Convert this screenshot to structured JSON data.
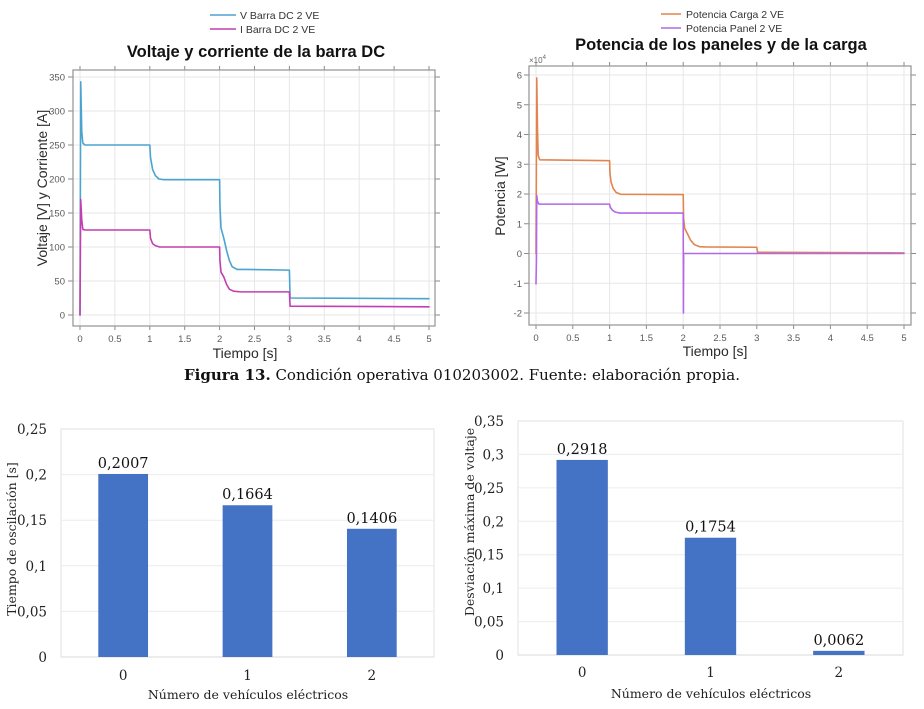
{
  "figure_caption": {
    "label": "Figura 13.",
    "text": " Condición operativa 010203002. Fuente: elaboración propia."
  },
  "chart_data": [
    {
      "id": "voltage_current",
      "type": "line",
      "title": "Voltaje y corriente de la barra DC",
      "xlabel": "Tiempo [s]",
      "ylabel": "Voltaje [V] y Corriente [A]",
      "xlim": [
        0,
        5
      ],
      "ylim": [
        0,
        350
      ],
      "xticks": [
        0,
        0.5,
        1,
        1.5,
        2,
        2.5,
        3,
        3.5,
        4,
        4.5,
        5
      ],
      "xtick_labels": [
        "0",
        "0.5",
        "1",
        "1.5",
        "2",
        "2.5",
        "3",
        "3.5",
        "4",
        "4.5",
        "5"
      ],
      "yticks": [
        0,
        50,
        100,
        150,
        200,
        250,
        300,
        350
      ],
      "ytick_labels": [
        "0",
        "50",
        "100",
        "150",
        "200",
        "250",
        "300",
        "350"
      ],
      "grid": true,
      "legend_position": "top-center",
      "series": [
        {
          "name": "V Barra DC 2 VE",
          "color": "#4ba3cf",
          "points": [
            [
              0,
              0
            ],
            [
              0.01,
              343
            ],
            [
              0.025,
              270
            ],
            [
              0.04,
              253
            ],
            [
              0.07,
              250
            ],
            [
              1.0,
              250
            ],
            [
              1.01,
              232
            ],
            [
              1.04,
              214
            ],
            [
              1.08,
              205
            ],
            [
              1.13,
              200
            ],
            [
              1.2,
              199
            ],
            [
              2.0,
              199
            ],
            [
              2.005,
              160
            ],
            [
              2.02,
              128
            ],
            [
              2.06,
              113
            ],
            [
              2.1,
              95
            ],
            [
              2.14,
              80
            ],
            [
              2.18,
              71
            ],
            [
              2.25,
              67
            ],
            [
              2.35,
              67
            ],
            [
              3.0,
              66
            ],
            [
              3.01,
              25
            ],
            [
              5,
              24
            ]
          ]
        },
        {
          "name": "I Barra DC 2 VE",
          "color": "#c23fb0",
          "points": [
            [
              0,
              0
            ],
            [
              0.01,
              170
            ],
            [
              0.025,
              140
            ],
            [
              0.04,
              126
            ],
            [
              0.07,
              125
            ],
            [
              1.0,
              125
            ],
            [
              1.01,
              113
            ],
            [
              1.04,
              105
            ],
            [
              1.08,
              102
            ],
            [
              1.14,
              100
            ],
            [
              2.0,
              100
            ],
            [
              2.005,
              80
            ],
            [
              2.02,
              63
            ],
            [
              2.06,
              56
            ],
            [
              2.1,
              45
            ],
            [
              2.14,
              38
            ],
            [
              2.2,
              35
            ],
            [
              2.3,
              34
            ],
            [
              3.0,
              34
            ],
            [
              3.01,
              13
            ],
            [
              5,
              12
            ]
          ]
        }
      ]
    },
    {
      "id": "panel_load_power",
      "type": "line",
      "title": "Potencia de los paneles y de la carga",
      "xlabel": "Tiempo [s]",
      "ylabel": "Potencia [W]",
      "y_multiplier": {
        "base": "×10",
        "exponent": "4"
      },
      "xlim": [
        0,
        5
      ],
      "ylim": [
        -2,
        6
      ],
      "xticks": [
        0,
        0.5,
        1,
        1.5,
        2,
        2.5,
        3,
        3.5,
        4,
        4.5,
        5
      ],
      "xtick_labels": [
        "0",
        "0.5",
        "1",
        "1.5",
        "2",
        "2.5",
        "3",
        "3.5",
        "4",
        "4.5",
        "5"
      ],
      "yticks": [
        -2,
        -1,
        0,
        1,
        2,
        3,
        4,
        5,
        6
      ],
      "ytick_labels": [
        "-2",
        "-1",
        "0",
        "1",
        "2",
        "3",
        "4",
        "5",
        "6"
      ],
      "grid": true,
      "legend_position": "top-center",
      "series": [
        {
          "name": "Potencia Carga 2 VE",
          "color": "#e2844f",
          "points": [
            [
              0,
              0
            ],
            [
              0.01,
              5.9
            ],
            [
              0.02,
              4.2
            ],
            [
              0.03,
              3.3
            ],
            [
              0.05,
              3.15
            ],
            [
              1.0,
              3.12
            ],
            [
              1.005,
              2.7
            ],
            [
              1.02,
              2.4
            ],
            [
              1.05,
              2.18
            ],
            [
              1.09,
              2.05
            ],
            [
              1.15,
              1.99
            ],
            [
              2.0,
              1.98
            ],
            [
              2.005,
              1.2
            ],
            [
              2.02,
              0.85
            ],
            [
              2.06,
              0.65
            ],
            [
              2.1,
              0.45
            ],
            [
              2.15,
              0.3
            ],
            [
              2.22,
              0.23
            ],
            [
              2.3,
              0.22
            ],
            [
              3.0,
              0.21
            ],
            [
              3.01,
              0.04
            ],
            [
              5,
              0.02
            ]
          ]
        },
        {
          "name": "Potencia Panel 2 VE",
          "color": "#b468e6",
          "points": [
            [
              0,
              -1.02
            ],
            [
              0.006,
              -0.2
            ],
            [
              0.01,
              1.95
            ],
            [
              0.02,
              1.75
            ],
            [
              0.04,
              1.66
            ],
            [
              1.0,
              1.66
            ],
            [
              1.01,
              1.55
            ],
            [
              1.04,
              1.45
            ],
            [
              1.08,
              1.39
            ],
            [
              1.14,
              1.36
            ],
            [
              2.0,
              1.36
            ],
            [
              2.003,
              -2.0
            ],
            [
              2.006,
              0.0
            ],
            [
              5,
              0.0
            ]
          ]
        }
      ]
    },
    {
      "id": "oscillation_time",
      "type": "bar",
      "title": "",
      "categories": [
        "0",
        "1",
        "2"
      ],
      "values": [
        0.2007,
        0.1664,
        0.1406
      ],
      "data_labels": [
        "0,2007",
        "0,1664",
        "0,1406"
      ],
      "xlabel": "Número de vehículos eléctricos",
      "ylabel": "Tiempo de oscilación [s]",
      "ylim": [
        0,
        0.25
      ],
      "yticks": [
        0,
        0.05,
        0.1,
        0.15,
        0.2,
        0.25
      ],
      "ytick_labels": [
        "0",
        "0,05",
        "0,1",
        "0,15",
        "0,2",
        "0,25"
      ],
      "bar_color": "#4472c4",
      "grid": true
    },
    {
      "id": "max_voltage_deviation",
      "type": "bar",
      "title": "",
      "categories": [
        "0",
        "1",
        "2"
      ],
      "values": [
        0.2918,
        0.1754,
        0.0062
      ],
      "data_labels": [
        "0,2918",
        "0,1754",
        "0,0062"
      ],
      "xlabel": "Número de vehículos eléctricos",
      "ylabel": "Desviación máxima de voltaje",
      "ylim": [
        0,
        0.35
      ],
      "yticks": [
        0,
        0.05,
        0.1,
        0.15,
        0.2,
        0.25,
        0.3,
        0.35
      ],
      "ytick_labels": [
        "0",
        "0,05",
        "0,1",
        "0,15",
        "0,2",
        "0,25",
        "0,3",
        "0,35"
      ],
      "bar_color": "#4472c4",
      "grid": true
    }
  ]
}
